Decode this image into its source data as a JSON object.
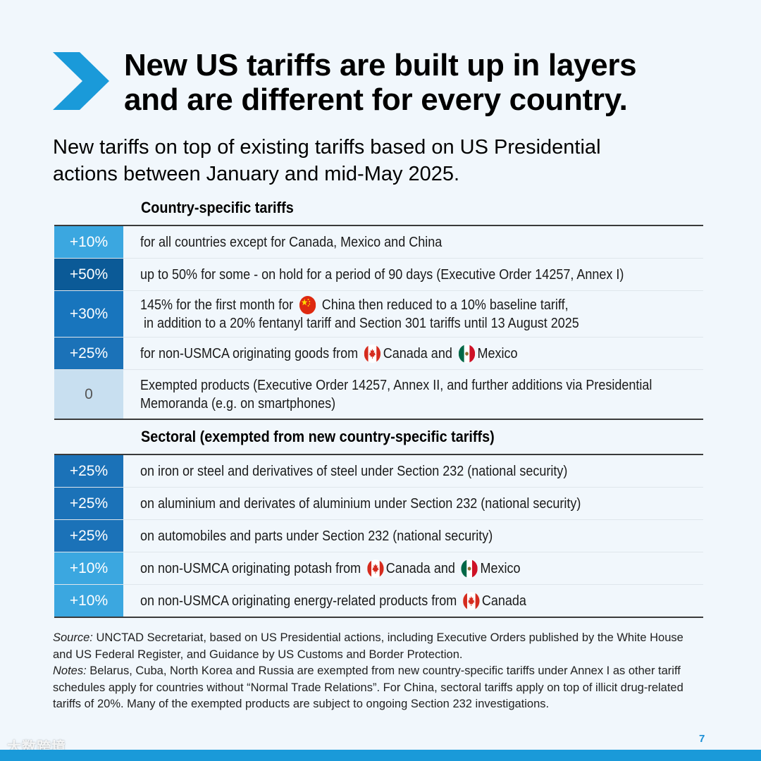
{
  "title": "New US tariffs are built up in layers\nand are different for every country.",
  "subtitle": "New tariffs on top of existing tariffs based on US Presidential\nactions between January and mid-May 2025.",
  "country_section": {
    "heading": "Country-specific tariffs",
    "rows": [
      {
        "pct": "+10%",
        "color": "#3ba7e0",
        "text_color": "#ffffff",
        "lines": [
          {
            "parts": [
              {
                "t": "for all countries except for Canada, Mexico and China"
              }
            ]
          }
        ]
      },
      {
        "pct": "+50%",
        "color": "#0b5a97",
        "text_color": "#ffffff",
        "lines": [
          {
            "parts": [
              {
                "t": "up to 50% for some - on hold for a period of 90 days (Executive Order 14257, Annex I)"
              }
            ]
          }
        ]
      },
      {
        "pct": "+30%",
        "color": "#1875bd",
        "text_color": "#ffffff",
        "lines": [
          {
            "parts": [
              {
                "t": "145% for the first month for "
              },
              {
                "flag": "china-flag-icon"
              },
              {
                "t": " China then reduced to a 10% baseline tariff,"
              }
            ]
          },
          {
            "parts": [
              {
                "t": " in addition to a 20% fentanyl tariff and Section 301 tariffs until 13 August 2025"
              }
            ]
          }
        ]
      },
      {
        "pct": "+25%",
        "color": "#1b72b8",
        "text_color": "#ffffff",
        "lines": [
          {
            "parts": [
              {
                "t": "for non-USMCA originating goods from "
              },
              {
                "flag": "canada-flag-icon"
              },
              {
                "t": "Canada and "
              },
              {
                "flag": "mexico-flag-icon"
              },
              {
                "t": "Mexico"
              }
            ]
          }
        ]
      },
      {
        "pct": "0",
        "color": "#c8dff0",
        "text_color": "#555555",
        "lines": [
          {
            "parts": [
              {
                "t": "Exempted products (Executive Order 14257, Annex II, and further additions via Presidential"
              }
            ]
          },
          {
            "parts": [
              {
                "t": "Memoranda (e.g. on smartphones)"
              }
            ]
          }
        ]
      }
    ]
  },
  "sector_section": {
    "heading": "Sectoral (exempted from new country-specific tariffs)",
    "rows": [
      {
        "pct": "+25%",
        "color": "#1b72b8",
        "text_color": "#ffffff",
        "lines": [
          {
            "parts": [
              {
                "t": "on iron or steel and derivatives of steel under Section 232 (national security)"
              }
            ]
          }
        ]
      },
      {
        "pct": "+25%",
        "color": "#1b72b8",
        "text_color": "#ffffff",
        "lines": [
          {
            "parts": [
              {
                "t": "on aluminium and derivates of aluminium under Section 232 (national security)"
              }
            ]
          }
        ]
      },
      {
        "pct": "+25%",
        "color": "#1b72b8",
        "text_color": "#ffffff",
        "lines": [
          {
            "parts": [
              {
                "t": "on automobiles and parts under Section 232 (national security)"
              }
            ]
          }
        ]
      },
      {
        "pct": "+10%",
        "color": "#3ba7e0",
        "text_color": "#ffffff",
        "lines": [
          {
            "parts": [
              {
                "t": "on non-USMCA originating potash from "
              },
              {
                "flag": "canada-flag-icon"
              },
              {
                "t": "Canada and "
              },
              {
                "flag": "mexico-flag-icon"
              },
              {
                "t": "Mexico"
              }
            ]
          }
        ]
      },
      {
        "pct": "+10%",
        "color": "#3ba7e0",
        "text_color": "#ffffff",
        "lines": [
          {
            "parts": [
              {
                "t": "on non-USMCA originating energy-related products from "
              },
              {
                "flag": "canada-flag-icon"
              },
              {
                "t": "Canada"
              }
            ]
          }
        ]
      }
    ]
  },
  "footer": {
    "source_label": "Source:",
    "source_text": " UNCTAD Secretariat, based on US Presidential actions, including Executive Orders published by the White House and US Federal Register, and Guidance by US Customs and Border Protection.",
    "notes_label": "Notes:",
    "notes_text": " Belarus, Cuba, North Korea and Russia are exempted from new country-specific tariffs under Annex I as other tariff schedules apply for countries without “Normal Trade Relations”. For China, sectoral tariffs apply on top of illicit drug-related tariffs of 20%. Many of the exempted products are subject to ongoing Section 232 investigations."
  },
  "page_number": "7",
  "watermark": "大数跨境",
  "accent_color": "#1a9ad9"
}
